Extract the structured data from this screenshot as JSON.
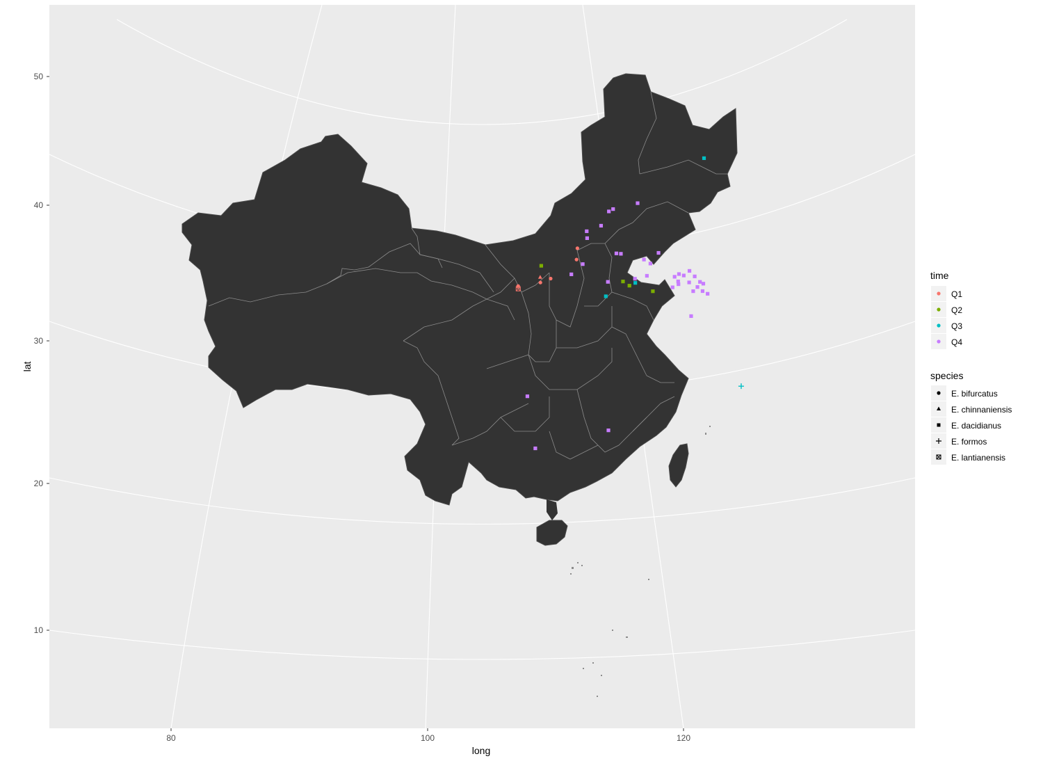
{
  "axes": {
    "x_title": "long",
    "y_title": "lat",
    "x_ticks": [
      "80",
      "100",
      "120"
    ],
    "y_ticks": [
      "10",
      "20",
      "30",
      "40",
      "50"
    ]
  },
  "colors": {
    "panel_bg": "#ebebeb",
    "grid": "#ffffff",
    "land": "#333333",
    "border": "#8c8c8c",
    "Q1": "#f8766d",
    "Q2": "#7cae00",
    "Q3": "#00bfc4",
    "Q4": "#c77cff"
  },
  "legend": {
    "time": {
      "title": "time",
      "items": [
        {
          "label": "Q1",
          "color": "#f8766d"
        },
        {
          "label": "Q2",
          "color": "#7cae00"
        },
        {
          "label": "Q3",
          "color": "#00bfc4"
        },
        {
          "label": "Q4",
          "color": "#c77cff"
        }
      ]
    },
    "species": {
      "title": "species",
      "items": [
        {
          "label": "E. bifurcatus",
          "shape": "circle"
        },
        {
          "label": "E. chinnaniensis",
          "shape": "triangle"
        },
        {
          "label": "E. dacidianus",
          "shape": "square"
        },
        {
          "label": "E. formos",
          "shape": "plus"
        },
        {
          "label": "E. lantianensis",
          "shape": "boxx"
        }
      ]
    }
  },
  "points": [
    {
      "long": 111.9,
      "lat": 36.0,
      "time": "Q1",
      "species": "circle"
    },
    {
      "long": 111.8,
      "lat": 35.2,
      "time": "Q1",
      "species": "circle"
    },
    {
      "long": 109.3,
      "lat": 34.3,
      "time": "Q1",
      "species": "triangle"
    },
    {
      "long": 110.0,
      "lat": 34.1,
      "time": "Q1",
      "species": "circle"
    },
    {
      "long": 109.3,
      "lat": 33.9,
      "time": "Q1",
      "species": "circle"
    },
    {
      "long": 107.8,
      "lat": 33.8,
      "time": "Q1",
      "species": "circle"
    },
    {
      "long": 107.8,
      "lat": 33.6,
      "time": "Q1",
      "species": "boxx"
    },
    {
      "long": 109.4,
      "lat": 35.1,
      "time": "Q2",
      "species": "square"
    },
    {
      "long": 114.8,
      "lat": 33.0,
      "time": "Q2",
      "species": "square"
    },
    {
      "long": 115.2,
      "lat": 32.6,
      "time": "Q2",
      "species": "square"
    },
    {
      "long": 116.7,
      "lat": 31.8,
      "time": "Q2",
      "species": "square"
    },
    {
      "long": 121.0,
      "lat": 40.0,
      "time": "Q3",
      "species": "square"
    },
    {
      "long": 115.6,
      "lat": 32.7,
      "time": "Q3",
      "species": "square"
    },
    {
      "long": 113.6,
      "lat": 32.2,
      "time": "Q3",
      "species": "square"
    },
    {
      "long": 121.6,
      "lat": 23.3,
      "time": "Q3",
      "species": "plus"
    },
    {
      "long": 114.2,
      "lat": 38.2,
      "time": "Q4",
      "species": "square"
    },
    {
      "long": 114.5,
      "lat": 38.3,
      "time": "Q4",
      "species": "square"
    },
    {
      "long": 116.2,
      "lat": 38.3,
      "time": "Q4",
      "species": "square"
    },
    {
      "long": 112.6,
      "lat": 37.1,
      "time": "Q4",
      "species": "square"
    },
    {
      "long": 113.6,
      "lat": 37.3,
      "time": "Q4",
      "species": "square"
    },
    {
      "long": 112.6,
      "lat": 36.6,
      "time": "Q4",
      "species": "square"
    },
    {
      "long": 112.2,
      "lat": 34.8,
      "time": "Q4",
      "species": "square"
    },
    {
      "long": 114.5,
      "lat": 35.1,
      "time": "Q4",
      "species": "square"
    },
    {
      "long": 114.8,
      "lat": 35.0,
      "time": "Q4",
      "species": "square"
    },
    {
      "long": 117.3,
      "lat": 34.4,
      "time": "Q4",
      "species": "square"
    },
    {
      "long": 111.4,
      "lat": 34.2,
      "time": "Q4",
      "species": "square"
    },
    {
      "long": 116.3,
      "lat": 34.2,
      "time": "Q4",
      "species": "square"
    },
    {
      "long": 116.7,
      "lat": 33.8,
      "time": "Q4",
      "species": "square"
    },
    {
      "long": 113.8,
      "lat": 33.2,
      "time": "Q4",
      "species": "square"
    },
    {
      "long": 115.6,
      "lat": 33.0,
      "time": "Q4",
      "species": "square"
    },
    {
      "long": 116.4,
      "lat": 33.0,
      "time": "Q4",
      "species": "square"
    },
    {
      "long": 118.2,
      "lat": 32.4,
      "time": "Q4",
      "species": "square"
    },
    {
      "long": 118.5,
      "lat": 32.5,
      "time": "Q4",
      "species": "square"
    },
    {
      "long": 119.2,
      "lat": 32.5,
      "time": "Q4",
      "species": "square"
    },
    {
      "long": 118.8,
      "lat": 32.3,
      "time": "Q4",
      "species": "square"
    },
    {
      "long": 118.4,
      "lat": 32.0,
      "time": "Q4",
      "species": "square"
    },
    {
      "long": 119.5,
      "lat": 32.0,
      "time": "Q4",
      "species": "square"
    },
    {
      "long": 118.0,
      "lat": 31.7,
      "time": "Q4",
      "species": "square"
    },
    {
      "long": 118.4,
      "lat": 31.8,
      "time": "Q4",
      "species": "square"
    },
    {
      "long": 119.1,
      "lat": 31.7,
      "time": "Q4",
      "species": "square"
    },
    {
      "long": 119.8,
      "lat": 31.5,
      "time": "Q4",
      "species": "square"
    },
    {
      "long": 119.6,
      "lat": 31.2,
      "time": "Q4",
      "species": "square"
    },
    {
      "long": 120.0,
      "lat": 31.3,
      "time": "Q4",
      "species": "square"
    },
    {
      "long": 119.3,
      "lat": 31.0,
      "time": "Q4",
      "species": "square"
    },
    {
      "long": 119.9,
      "lat": 30.8,
      "time": "Q4",
      "species": "square"
    },
    {
      "long": 120.2,
      "lat": 30.5,
      "time": "Q4",
      "species": "square"
    },
    {
      "long": 119.0,
      "lat": 29.3,
      "time": "Q4",
      "species": "square"
    },
    {
      "long": 108.2,
      "lat": 25.8,
      "time": "Q4",
      "species": "square"
    },
    {
      "long": 108.6,
      "lat": 22.0,
      "time": "Q4",
      "species": "square"
    },
    {
      "long": 113.2,
      "lat": 22.6,
      "time": "Q4",
      "species": "square"
    }
  ]
}
